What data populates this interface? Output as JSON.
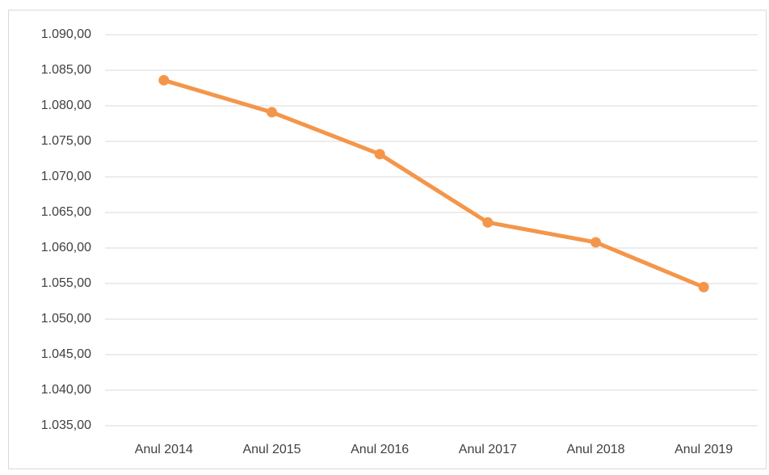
{
  "chart_data": {
    "type": "line",
    "categories": [
      "Anul 2014",
      "Anul 2015",
      "Anul 2016",
      "Anul 2017",
      "Anul 2018",
      "Anul 2019"
    ],
    "series": [
      {
        "color": "#f4964a",
        "values": [
          1083.6,
          1079.1,
          1073.2,
          1063.6,
          1060.8,
          1054.5
        ]
      }
    ],
    "ylim": [
      1035,
      1090
    ],
    "yticks": [
      {
        "value": 1035,
        "label": "1.035,00"
      },
      {
        "value": 1040,
        "label": "1.040,00"
      },
      {
        "value": 1045,
        "label": "1.045,00"
      },
      {
        "value": 1050,
        "label": "1.050,00"
      },
      {
        "value": 1055,
        "label": "1.055,00"
      },
      {
        "value": 1060,
        "label": "1.060,00"
      },
      {
        "value": 1065,
        "label": "1.065,00"
      },
      {
        "value": 1070,
        "label": "1.070,00"
      },
      {
        "value": 1075,
        "label": "1.075,00"
      },
      {
        "value": 1080,
        "label": "1.080,00"
      },
      {
        "value": 1085,
        "label": "1.085,00"
      },
      {
        "value": 1090,
        "label": "1.090,00"
      }
    ],
    "grid": true
  }
}
